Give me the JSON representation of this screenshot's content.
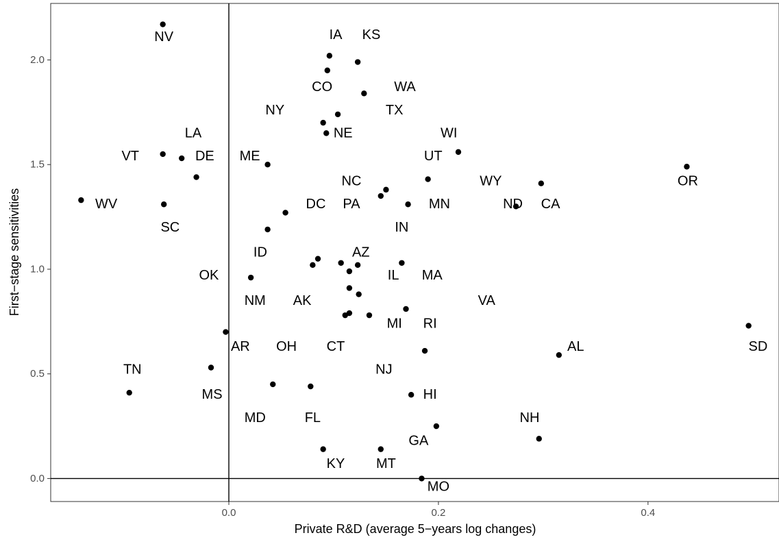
{
  "chart_data": {
    "type": "scatter",
    "title": "",
    "xlabel": "Private R&D (average 5−years log changes)",
    "ylabel": "First−stage sensitivities",
    "xlim": [
      -0.17,
      0.525
    ],
    "ylim": [
      -0.11,
      2.27
    ],
    "x_ticks": [
      {
        "value": 0.0,
        "label": "0.0"
      },
      {
        "value": 0.2,
        "label": "0.2"
      },
      {
        "value": 0.4,
        "label": "0.4"
      }
    ],
    "y_ticks": [
      {
        "value": 0.0,
        "label": "0.0"
      },
      {
        "value": 0.5,
        "label": "0.5"
      },
      {
        "value": 1.0,
        "label": "1.0"
      },
      {
        "value": 1.5,
        "label": "1.5"
      },
      {
        "value": 2.0,
        "label": "2.0"
      }
    ],
    "reference_lines": {
      "x": 0,
      "y": 0
    },
    "grid": false,
    "point_color": "#000000",
    "points": [
      {
        "x": -0.063,
        "y": 2.17
      },
      {
        "x": 0.096,
        "y": 2.02
      },
      {
        "x": 0.123,
        "y": 1.99
      },
      {
        "x": 0.094,
        "y": 1.95
      },
      {
        "x": 0.129,
        "y": 1.84
      },
      {
        "x": 0.104,
        "y": 1.74
      },
      {
        "x": 0.09,
        "y": 1.7
      },
      {
        "x": 0.093,
        "y": 1.65
      },
      {
        "x": 0.219,
        "y": 1.56
      },
      {
        "x": -0.063,
        "y": 1.55
      },
      {
        "x": -0.045,
        "y": 1.53
      },
      {
        "x": 0.037,
        "y": 1.5
      },
      {
        "x": 0.437,
        "y": 1.49
      },
      {
        "x": -0.031,
        "y": 1.44
      },
      {
        "x": 0.19,
        "y": 1.43
      },
      {
        "x": 0.298,
        "y": 1.41
      },
      {
        "x": 0.15,
        "y": 1.38
      },
      {
        "x": 0.145,
        "y": 1.35
      },
      {
        "x": -0.141,
        "y": 1.33
      },
      {
        "x": -0.062,
        "y": 1.31
      },
      {
        "x": 0.171,
        "y": 1.31
      },
      {
        "x": 0.274,
        "y": 1.3
      },
      {
        "x": 0.054,
        "y": 1.27
      },
      {
        "x": 0.037,
        "y": 1.19
      },
      {
        "x": 0.085,
        "y": 1.05
      },
      {
        "x": 0.107,
        "y": 1.03
      },
      {
        "x": 0.165,
        "y": 1.03
      },
      {
        "x": 0.08,
        "y": 1.02
      },
      {
        "x": 0.123,
        "y": 1.02
      },
      {
        "x": 0.115,
        "y": 0.99
      },
      {
        "x": 0.021,
        "y": 0.96
      },
      {
        "x": 0.115,
        "y": 0.91
      },
      {
        "x": 0.124,
        "y": 0.88
      },
      {
        "x": 0.169,
        "y": 0.81
      },
      {
        "x": 0.115,
        "y": 0.79
      },
      {
        "x": 0.111,
        "y": 0.78
      },
      {
        "x": 0.134,
        "y": 0.78
      },
      {
        "x": 0.496,
        "y": 0.73
      },
      {
        "x": -0.003,
        "y": 0.7
      },
      {
        "x": 0.187,
        "y": 0.61
      },
      {
        "x": 0.315,
        "y": 0.59
      },
      {
        "x": -0.017,
        "y": 0.53
      },
      {
        "x": 0.042,
        "y": 0.45
      },
      {
        "x": 0.078,
        "y": 0.44
      },
      {
        "x": -0.095,
        "y": 0.41
      },
      {
        "x": 0.174,
        "y": 0.4
      },
      {
        "x": 0.198,
        "y": 0.25
      },
      {
        "x": 0.296,
        "y": 0.19
      },
      {
        "x": 0.09,
        "y": 0.14
      },
      {
        "x": 0.145,
        "y": 0.14
      },
      {
        "x": 0.184,
        "y": 0.0
      }
    ],
    "labels": [
      {
        "text": "NV",
        "x": -0.062,
        "y": 2.11
      },
      {
        "text": "IA",
        "x": 0.102,
        "y": 2.12
      },
      {
        "text": "KS",
        "x": 0.136,
        "y": 2.12
      },
      {
        "text": "CO",
        "x": 0.089,
        "y": 1.87
      },
      {
        "text": "WA",
        "x": 0.168,
        "y": 1.87
      },
      {
        "text": "NY",
        "x": 0.044,
        "y": 1.76
      },
      {
        "text": "TX",
        "x": 0.158,
        "y": 1.76
      },
      {
        "text": "NE",
        "x": 0.109,
        "y": 1.65
      },
      {
        "text": "LA",
        "x": -0.034,
        "y": 1.65
      },
      {
        "text": "WI",
        "x": 0.21,
        "y": 1.65
      },
      {
        "text": "VT",
        "x": -0.094,
        "y": 1.54
      },
      {
        "text": "DE",
        "x": -0.023,
        "y": 1.54
      },
      {
        "text": "ME",
        "x": 0.02,
        "y": 1.54
      },
      {
        "text": "UT",
        "x": 0.195,
        "y": 1.54
      },
      {
        "text": "NC",
        "x": 0.117,
        "y": 1.42
      },
      {
        "text": "WY",
        "x": 0.25,
        "y": 1.42
      },
      {
        "text": "OR",
        "x": 0.438,
        "y": 1.42
      },
      {
        "text": "WV",
        "x": -0.117,
        "y": 1.31
      },
      {
        "text": "DC",
        "x": 0.083,
        "y": 1.31
      },
      {
        "text": "PA",
        "x": 0.117,
        "y": 1.31
      },
      {
        "text": "MN",
        "x": 0.201,
        "y": 1.31
      },
      {
        "text": "ND",
        "x": 0.271,
        "y": 1.31
      },
      {
        "text": "CA",
        "x": 0.307,
        "y": 1.31
      },
      {
        "text": "SC",
        "x": -0.056,
        "y": 1.2
      },
      {
        "text": "IN",
        "x": 0.165,
        "y": 1.2
      },
      {
        "text": "ID",
        "x": 0.03,
        "y": 1.08
      },
      {
        "text": "AZ",
        "x": 0.126,
        "y": 1.08
      },
      {
        "text": "OK",
        "x": -0.019,
        "y": 0.97
      },
      {
        "text": "IL",
        "x": 0.157,
        "y": 0.97
      },
      {
        "text": "MA",
        "x": 0.194,
        "y": 0.97
      },
      {
        "text": "NM",
        "x": 0.025,
        "y": 0.85
      },
      {
        "text": "AK",
        "x": 0.07,
        "y": 0.85
      },
      {
        "text": "VA",
        "x": 0.246,
        "y": 0.85
      },
      {
        "text": "MI",
        "x": 0.158,
        "y": 0.74
      },
      {
        "text": "RI",
        "x": 0.192,
        "y": 0.74
      },
      {
        "text": "AR",
        "x": 0.011,
        "y": 0.63
      },
      {
        "text": "OH",
        "x": 0.055,
        "y": 0.63
      },
      {
        "text": "CT",
        "x": 0.102,
        "y": 0.63
      },
      {
        "text": "AL",
        "x": 0.331,
        "y": 0.63
      },
      {
        "text": "SD",
        "x": 0.505,
        "y": 0.63
      },
      {
        "text": "TN",
        "x": -0.092,
        "y": 0.52
      },
      {
        "text": "NJ",
        "x": 0.148,
        "y": 0.52
      },
      {
        "text": "MS",
        "x": -0.016,
        "y": 0.4
      },
      {
        "text": "HI",
        "x": 0.192,
        "y": 0.4
      },
      {
        "text": "MD",
        "x": 0.025,
        "y": 0.29
      },
      {
        "text": "FL",
        "x": 0.08,
        "y": 0.29
      },
      {
        "text": "NH",
        "x": 0.287,
        "y": 0.29
      },
      {
        "text": "GA",
        "x": 0.181,
        "y": 0.18
      },
      {
        "text": "KY",
        "x": 0.102,
        "y": 0.07
      },
      {
        "text": "MT",
        "x": 0.15,
        "y": 0.07
      },
      {
        "text": "MO",
        "x": 0.2,
        "y": -0.04
      }
    ]
  }
}
